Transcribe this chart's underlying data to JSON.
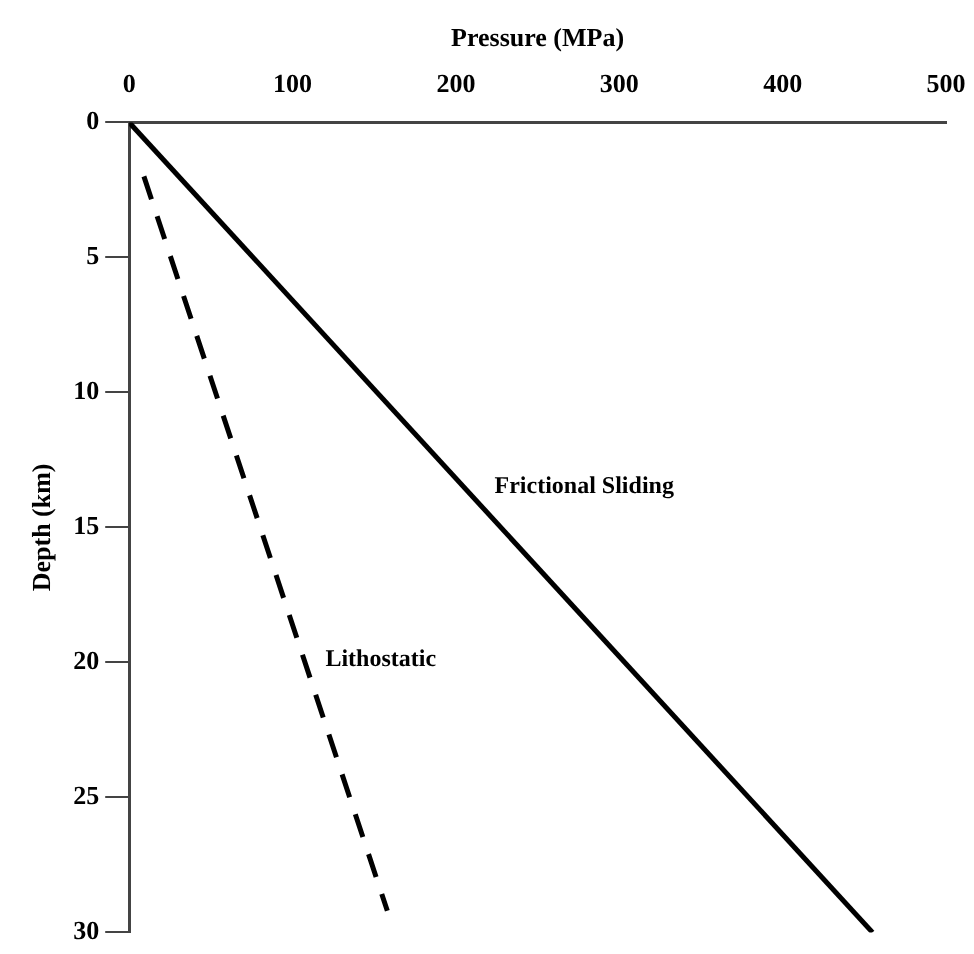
{
  "chart_data": {
    "type": "line",
    "xlabel": "Pressure (MPa)",
    "ylabel": "Depth (km)",
    "series": [
      {
        "name": "Frictional Sliding",
        "color": "#000000",
        "x": [
          0,
          455
        ],
        "values": [
          0,
          30
        ],
        "line_style": "solid"
      },
      {
        "name": "Lithostatic",
        "color": "#000000",
        "x": [
          9,
          158
        ],
        "values": [
          2,
          29.2
        ],
        "line_style": "dashed"
      }
    ],
    "xlim": [
      0,
      500
    ],
    "xticks": [
      0,
      100,
      200,
      300,
      400,
      500
    ],
    "ylim": [
      30,
      0
    ],
    "yticks": [
      0,
      5,
      10,
      15,
      20,
      25,
      30
    ],
    "grid": false,
    "legend": false,
    "marker": "none"
  }
}
